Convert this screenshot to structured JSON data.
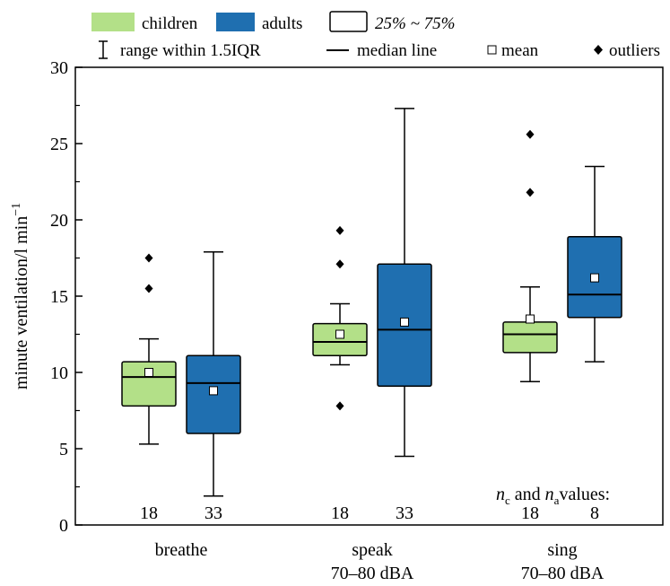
{
  "colors": {
    "children": "#b3e088",
    "adults": "#1f6fb0",
    "outline": "#000000"
  },
  "legend": {
    "children": "children",
    "adults": "adults",
    "box": "25% ~ 75%",
    "range": "range within 1.5IQR",
    "median": "median line",
    "mean": "mean",
    "outliers": "outliers"
  },
  "chart_data": {
    "type": "box",
    "ylabel": "minute ventilation/l min",
    "ylabel_superscript": "−1",
    "ylim": [
      0,
      30
    ],
    "yticks": [
      "0",
      "5",
      "10",
      "15",
      "20",
      "25",
      "30"
    ],
    "categories": [
      {
        "line1": "breathe",
        "line2": ""
      },
      {
        "line1": "speak",
        "line2": "70–80 dBA"
      },
      {
        "line1": "sing",
        "line2": "70–80 dBA"
      }
    ],
    "series": [
      {
        "name": "children",
        "boxes": [
          {
            "whisker_low": 5.3,
            "q1": 7.8,
            "median": 9.7,
            "q3": 10.7,
            "whisker_high": 12.2,
            "mean": 10.0,
            "outliers": [
              15.5,
              17.5
            ],
            "n": "18"
          },
          {
            "whisker_low": 10.5,
            "q1": 11.1,
            "median": 12.0,
            "q3": 13.2,
            "whisker_high": 14.5,
            "mean": 12.5,
            "outliers": [
              7.8,
              17.1,
              19.3
            ],
            "n": "18"
          },
          {
            "whisker_low": 9.4,
            "q1": 11.3,
            "median": 12.5,
            "q3": 13.3,
            "whisker_high": 15.6,
            "mean": 13.5,
            "outliers": [
              21.8,
              25.6
            ],
            "n": "18"
          }
        ]
      },
      {
        "name": "adults",
        "boxes": [
          {
            "whisker_low": 1.9,
            "q1": 6.0,
            "median": 9.3,
            "q3": 11.1,
            "whisker_high": 17.9,
            "mean": 8.8,
            "outliers": [],
            "n": "33"
          },
          {
            "whisker_low": 4.5,
            "q1": 9.1,
            "median": 12.8,
            "q3": 17.1,
            "whisker_high": 27.3,
            "mean": 13.3,
            "outliers": [],
            "n": "33"
          },
          {
            "whisker_low": 10.7,
            "q1": 13.6,
            "median": 15.1,
            "q3": 18.9,
            "whisker_high": 23.5,
            "mean": 16.2,
            "outliers": [],
            "n": "8"
          }
        ]
      }
    ],
    "n_annotation": {
      "n_c": "n",
      "c_sub": "c",
      "and": " and ",
      "n_a": "n",
      "a_sub": "a",
      "suffix": "values:"
    }
  }
}
